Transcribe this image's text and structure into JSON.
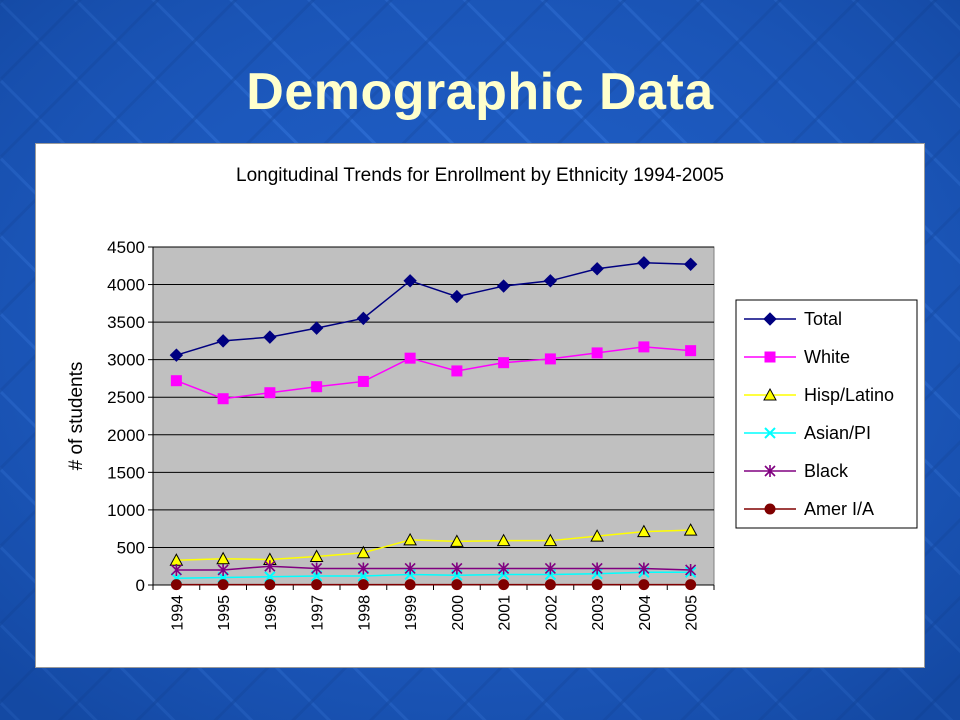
{
  "slide": {
    "title": "Demographic Data"
  },
  "chart_data": {
    "type": "line",
    "title": "Longitudinal Trends for Enrollment by Ethnicity 1994-2005",
    "xlabel": "",
    "ylabel": "# of students",
    "categories": [
      "1994",
      "1995",
      "1996",
      "1997",
      "1998",
      "1999",
      "2000",
      "2001",
      "2002",
      "2003",
      "2004",
      "2005"
    ],
    "ylim": [
      0,
      4500
    ],
    "yticks": [
      0,
      500,
      1000,
      1500,
      2000,
      2500,
      3000,
      3500,
      4000,
      4500
    ],
    "grid": true,
    "legend_position": "right",
    "plot_background": "#c0c0c0",
    "series": [
      {
        "name": "Total",
        "color": "#000080",
        "marker": "diamond",
        "values": [
          3060,
          3250,
          3300,
          3420,
          3550,
          4050,
          3840,
          3980,
          4050,
          4210,
          4290,
          4270
        ]
      },
      {
        "name": "White",
        "color": "#ff00ff",
        "marker": "square",
        "values": [
          2720,
          2480,
          2560,
          2640,
          2710,
          3020,
          2850,
          2960,
          3010,
          3090,
          3170,
          3120
        ]
      },
      {
        "name": "Hisp/Latino",
        "color": "#ffff00",
        "marker": "triangle",
        "values": [
          330,
          350,
          340,
          380,
          430,
          600,
          580,
          590,
          590,
          650,
          710,
          730
        ]
      },
      {
        "name": "Asian/PI",
        "color": "#00ffff",
        "marker": "x",
        "values": [
          90,
          100,
          110,
          120,
          120,
          140,
          130,
          140,
          140,
          150,
          170,
          170
        ]
      },
      {
        "name": "Black",
        "color": "#800080",
        "marker": "star",
        "values": [
          200,
          200,
          250,
          220,
          220,
          220,
          220,
          220,
          220,
          220,
          220,
          200
        ]
      },
      {
        "name": "Amer I/A",
        "color": "#800000",
        "marker": "circle",
        "values": [
          5,
          5,
          5,
          5,
          5,
          5,
          5,
          5,
          5,
          5,
          5,
          5
        ]
      }
    ]
  }
}
